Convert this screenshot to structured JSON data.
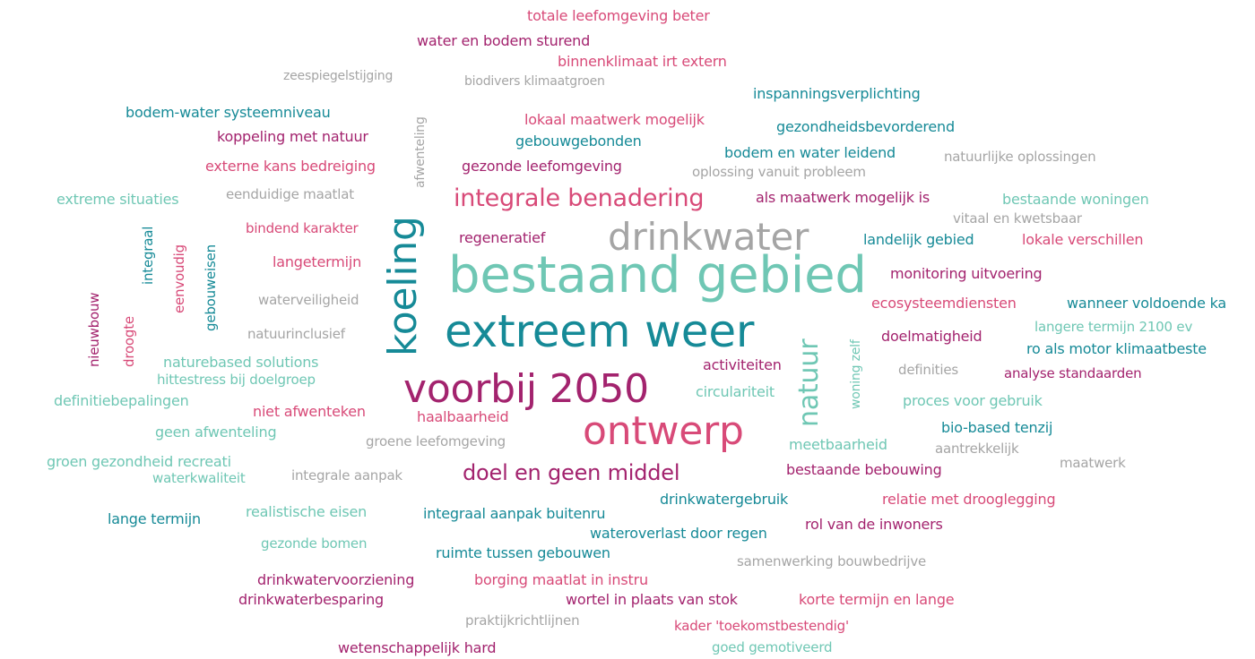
{
  "colors": {
    "magenta": "#a3236e",
    "pink": "#d84a78",
    "teal": "#168a97",
    "seafoam": "#6fc7b4",
    "gray": "#a5a5a5",
    "mint": "#7fd1bf"
  },
  "words": [
    {
      "text": "totale leefomgeving beter",
      "color": "pink"
    },
    {
      "text": "water en bodem sturend",
      "color": "magenta"
    },
    {
      "text": "binnenklimaat irt extern",
      "color": "pink"
    },
    {
      "text": "zeespiegelstijging",
      "color": "gray"
    },
    {
      "text": "biodivers klimaatgroen",
      "color": "gray"
    },
    {
      "text": "inspanningsverplichting",
      "color": "teal"
    },
    {
      "text": "bodem-water systeemniveau",
      "color": "teal"
    },
    {
      "text": "afwenteling",
      "color": "gray"
    },
    {
      "text": "lokaal maatwerk mogelijk",
      "color": "pink"
    },
    {
      "text": "gezondheidsbevorderend",
      "color": "teal"
    },
    {
      "text": "koppeling met natuur",
      "color": "magenta"
    },
    {
      "text": "gebouwgebonden",
      "color": "teal"
    },
    {
      "text": "bodem en water leidend",
      "color": "teal"
    },
    {
      "text": "natuurlijke oplossingen",
      "color": "gray"
    },
    {
      "text": "externe kans bedreiging",
      "color": "pink"
    },
    {
      "text": "gezonde leefomgeving",
      "color": "magenta"
    },
    {
      "text": "oplossing vanuit probleem",
      "color": "gray"
    },
    {
      "text": "extreme situaties",
      "color": "seafoam"
    },
    {
      "text": "eenduidige maatlat",
      "color": "gray"
    },
    {
      "text": "integrale benadering",
      "color": "pink"
    },
    {
      "text": "als maatwerk mogelijk is",
      "color": "magenta"
    },
    {
      "text": "bestaande woningen",
      "color": "seafoam"
    },
    {
      "text": "integraal",
      "color": "teal"
    },
    {
      "text": "bindend karakter",
      "color": "pink"
    },
    {
      "text": "koeling",
      "color": "teal"
    },
    {
      "text": "vitaal en kwetsbaar",
      "color": "gray"
    },
    {
      "text": "regeneratief",
      "color": "magenta"
    },
    {
      "text": "drinkwater",
      "color": "gray"
    },
    {
      "text": "landelijk gebied",
      "color": "teal"
    },
    {
      "text": "lokale verschillen",
      "color": "pink"
    },
    {
      "text": "eenvoudig",
      "color": "pink"
    },
    {
      "text": "gebouweisen",
      "color": "teal"
    },
    {
      "text": "langetermijn",
      "color": "pink"
    },
    {
      "text": "bestaand gebied",
      "color": "seafoam"
    },
    {
      "text": "monitoring uitvoering",
      "color": "magenta"
    },
    {
      "text": "nieuwbouw",
      "color": "magenta"
    },
    {
      "text": "droogte",
      "color": "pink"
    },
    {
      "text": "waterveiligheid",
      "color": "gray"
    },
    {
      "text": "ecosysteemdiensten",
      "color": "pink"
    },
    {
      "text": "wanneer voldoende ka",
      "color": "teal"
    },
    {
      "text": "langere termijn 2100 ev",
      "color": "seafoam"
    },
    {
      "text": "natuurinclusief",
      "color": "gray"
    },
    {
      "text": "extreem weer",
      "color": "teal"
    },
    {
      "text": "woning zelf",
      "color": "seafoam"
    },
    {
      "text": "doelmatigheid",
      "color": "magenta"
    },
    {
      "text": "ro als motor klimaatbeste",
      "color": "teal"
    },
    {
      "text": "naturebased solutions",
      "color": "seafoam"
    },
    {
      "text": "activiteiten",
      "color": "magenta"
    },
    {
      "text": "natuur",
      "color": "seafoam"
    },
    {
      "text": "definities",
      "color": "gray"
    },
    {
      "text": "analyse standaarden",
      "color": "magenta"
    },
    {
      "text": "hittestress bij doelgroep",
      "color": "seafoam"
    },
    {
      "text": "voorbij 2050",
      "color": "magenta"
    },
    {
      "text": "definitiebepalingen",
      "color": "seafoam"
    },
    {
      "text": "circulariteit",
      "color": "seafoam"
    },
    {
      "text": "proces voor gebruik",
      "color": "seafoam"
    },
    {
      "text": "niet afwenteken",
      "color": "pink"
    },
    {
      "text": "haalbaarheid",
      "color": "pink"
    },
    {
      "text": "bio-based tenzij",
      "color": "teal"
    },
    {
      "text": "geen afwenteling",
      "color": "seafoam"
    },
    {
      "text": "ontwerp",
      "color": "pink"
    },
    {
      "text": "groene leefomgeving",
      "color": "gray"
    },
    {
      "text": "meetbaarheid",
      "color": "seafoam"
    },
    {
      "text": "aantrekkelijk",
      "color": "gray"
    },
    {
      "text": "groen gezondheid recreati",
      "color": "seafoam"
    },
    {
      "text": "maatwerk",
      "color": "gray"
    },
    {
      "text": "waterkwaliteit",
      "color": "seafoam"
    },
    {
      "text": "integrale aanpak",
      "color": "gray"
    },
    {
      "text": "doel en geen middel",
      "color": "magenta"
    },
    {
      "text": "bestaande bebouwing",
      "color": "magenta"
    },
    {
      "text": "drinkwatergebruik",
      "color": "teal"
    },
    {
      "text": "relatie met drooglegging",
      "color": "pink"
    },
    {
      "text": "lange termijn",
      "color": "teal"
    },
    {
      "text": "realistische eisen",
      "color": "seafoam"
    },
    {
      "text": "integraal aanpak buitenru",
      "color": "teal"
    },
    {
      "text": "rol van de inwoners",
      "color": "magenta"
    },
    {
      "text": "wateroverlast door regen",
      "color": "teal"
    },
    {
      "text": "gezonde bomen",
      "color": "seafoam"
    },
    {
      "text": "ruimte tussen gebouwen",
      "color": "teal"
    },
    {
      "text": "samenwerking bouwbedrijve",
      "color": "gray"
    },
    {
      "text": "drinkwatervoorziening",
      "color": "magenta"
    },
    {
      "text": "borging maatlat in instru",
      "color": "pink"
    },
    {
      "text": "drinkwaterbesparing",
      "color": "magenta"
    },
    {
      "text": "wortel in plaats van stok",
      "color": "magenta"
    },
    {
      "text": "korte termijn en lange",
      "color": "pink"
    },
    {
      "text": "praktijkrichtlijnen",
      "color": "gray"
    },
    {
      "text": "kader 'toekomstbestendig'",
      "color": "pink"
    },
    {
      "text": "wetenschappelijk hard",
      "color": "magenta"
    },
    {
      "text": "goed gemotiveerd",
      "color": "seafoam"
    }
  ]
}
